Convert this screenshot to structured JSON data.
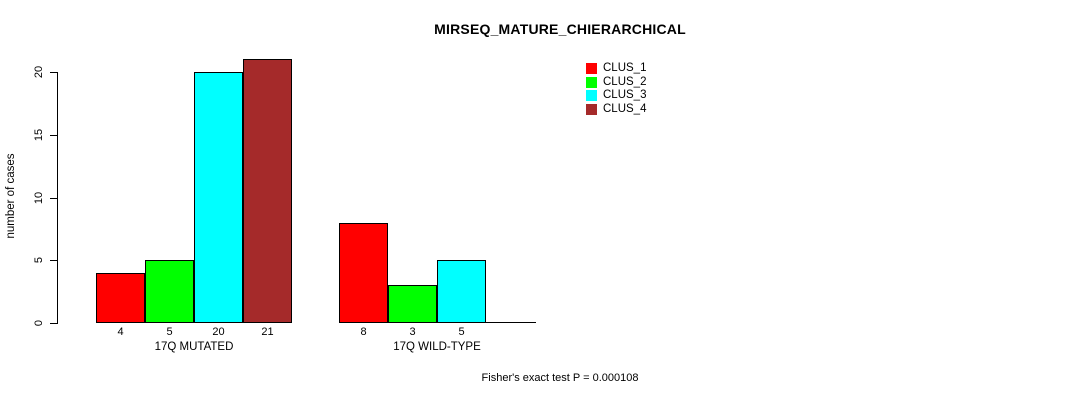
{
  "chart_data": {
    "type": "bar",
    "title": "MIRSEQ_MATURE_CHIERARCHICAL",
    "ylabel": "number of cases",
    "xlabel": "",
    "ylim": [
      0,
      20
    ],
    "yticks": [
      0,
      5,
      10,
      15,
      20
    ],
    "categories": [
      "17Q MUTATED",
      "17Q WILD-TYPE"
    ],
    "series": [
      {
        "name": "CLUS_1",
        "color": "#ff0000",
        "values": [
          4,
          8
        ]
      },
      {
        "name": "CLUS_2",
        "color": "#00ff00",
        "values": [
          5,
          3
        ]
      },
      {
        "name": "CLUS_3",
        "color": "#00ffff",
        "values": [
          20,
          5
        ]
      },
      {
        "name": "CLUS_4",
        "color": "#a52a2a",
        "values": [
          21,
          0
        ]
      }
    ],
    "bar_value_labels": [
      [
        "4",
        "5",
        "20",
        "21"
      ],
      [
        "8",
        "3",
        "5",
        ""
      ]
    ],
    "legend": {
      "position": "top-right",
      "entries": [
        "CLUS_1",
        "CLUS_2",
        "CLUS_3",
        "CLUS_4"
      ]
    },
    "grid": false,
    "annotation": "Fisher's exact test P = 0.000108"
  }
}
